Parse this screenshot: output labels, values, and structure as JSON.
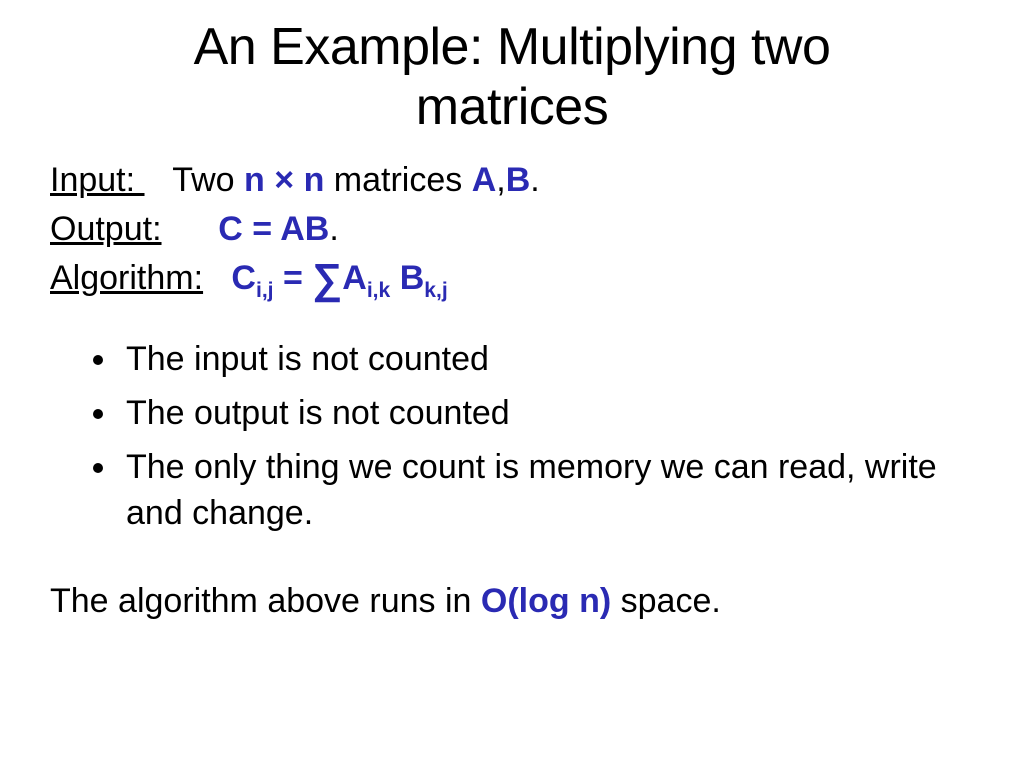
{
  "colors": {
    "blue": "#2a2ab3",
    "text": "#000000",
    "background": "#ffffff"
  },
  "title": {
    "line1": "An Example: Multiplying two",
    "line2": "matrices"
  },
  "input": {
    "label": "Input: ",
    "pre": "   Two ",
    "n1": "n",
    "times": " × ",
    "n2": "n",
    "mid": " matrices ",
    "A": "A",
    "comma": ",",
    "B": "B",
    "period": "."
  },
  "output": {
    "label": "Output:",
    "gap": "      ",
    "eq": "C = AB",
    "period": "."
  },
  "algorithm": {
    "label": "Algorithm:",
    "gap": "   ",
    "C": "C",
    "Csub": "i,j",
    "eq": " = ",
    "sum": "∑",
    "A": "A",
    "Asub": "i,k",
    "space": " ",
    "B": "B",
    "Bsub": "k,j"
  },
  "bullets": [
    "The input is not counted",
    "The output is not counted",
    "The only thing we count is memory we can read, write and change."
  ],
  "closing": {
    "pre": "The algorithm above runs in ",
    "complexity": "O(log n)",
    "post": " space."
  }
}
